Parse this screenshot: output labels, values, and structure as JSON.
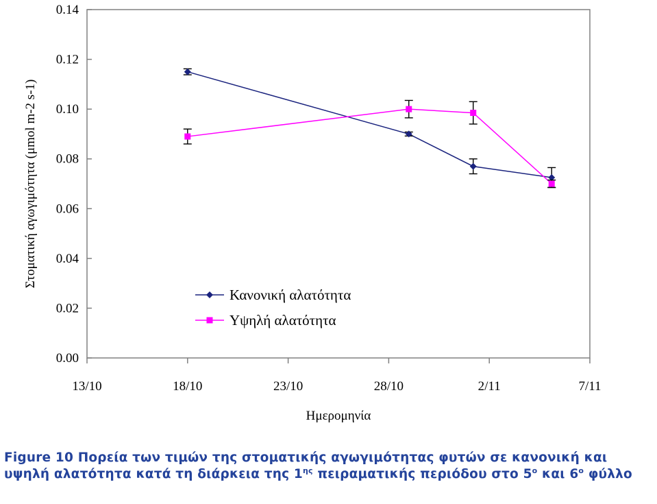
{
  "chart_data": {
    "type": "line",
    "xlabel": "Ημερομηνία",
    "ylabel": "Στοματική αγωγιμότητα (μmol m-2 s-1)",
    "x_ticks": [
      "13/10",
      "18/10",
      "23/10",
      "28/10",
      "2/11",
      "7/11"
    ],
    "x_tick_days": [
      0,
      5,
      10,
      15,
      20,
      25
    ],
    "y_ticks": [
      "0.00",
      "0.02",
      "0.04",
      "0.06",
      "0.08",
      "0.10",
      "0.12",
      "0.14"
    ],
    "ylim": [
      0,
      0.14
    ],
    "legend_position": "lower-left",
    "grid": false,
    "series": [
      {
        "name": "Κανονική αλατότητα",
        "color": "#1a237e",
        "marker": "diamond",
        "x_days": [
          5,
          16,
          19.2,
          23.1
        ],
        "x": [
          "18/10",
          "29/10",
          "1/11",
          "5/11"
        ],
        "y": [
          0.115,
          0.09,
          0.077,
          0.0725
        ],
        "err": [
          0.0012,
          0.0008,
          0.003,
          0.004
        ]
      },
      {
        "name": "Υψηλή αλατότητα",
        "color": "#ff00ff",
        "marker": "square",
        "x_days": [
          5,
          16,
          19.2,
          23.1
        ],
        "x": [
          "18/10",
          "29/10",
          "1/11",
          "5/11"
        ],
        "y": [
          0.089,
          0.1,
          0.0985,
          0.07
        ],
        "err": [
          0.003,
          0.0035,
          0.0045,
          0.0015
        ]
      }
    ]
  },
  "caption": {
    "part1": "Figure 10 Πορεία των τιμών της στοματικής αγωγιμότητας φυτών σε κανονική και υψηλή αλατότητα κατά τη διάρκεια της 1",
    "sup1": "ης",
    "part2": " πειραματικής περιόδου στο 5",
    "sup2": "ο",
    "part3": " και 6",
    "sup3": "ο",
    "part4": " φύλλο"
  }
}
